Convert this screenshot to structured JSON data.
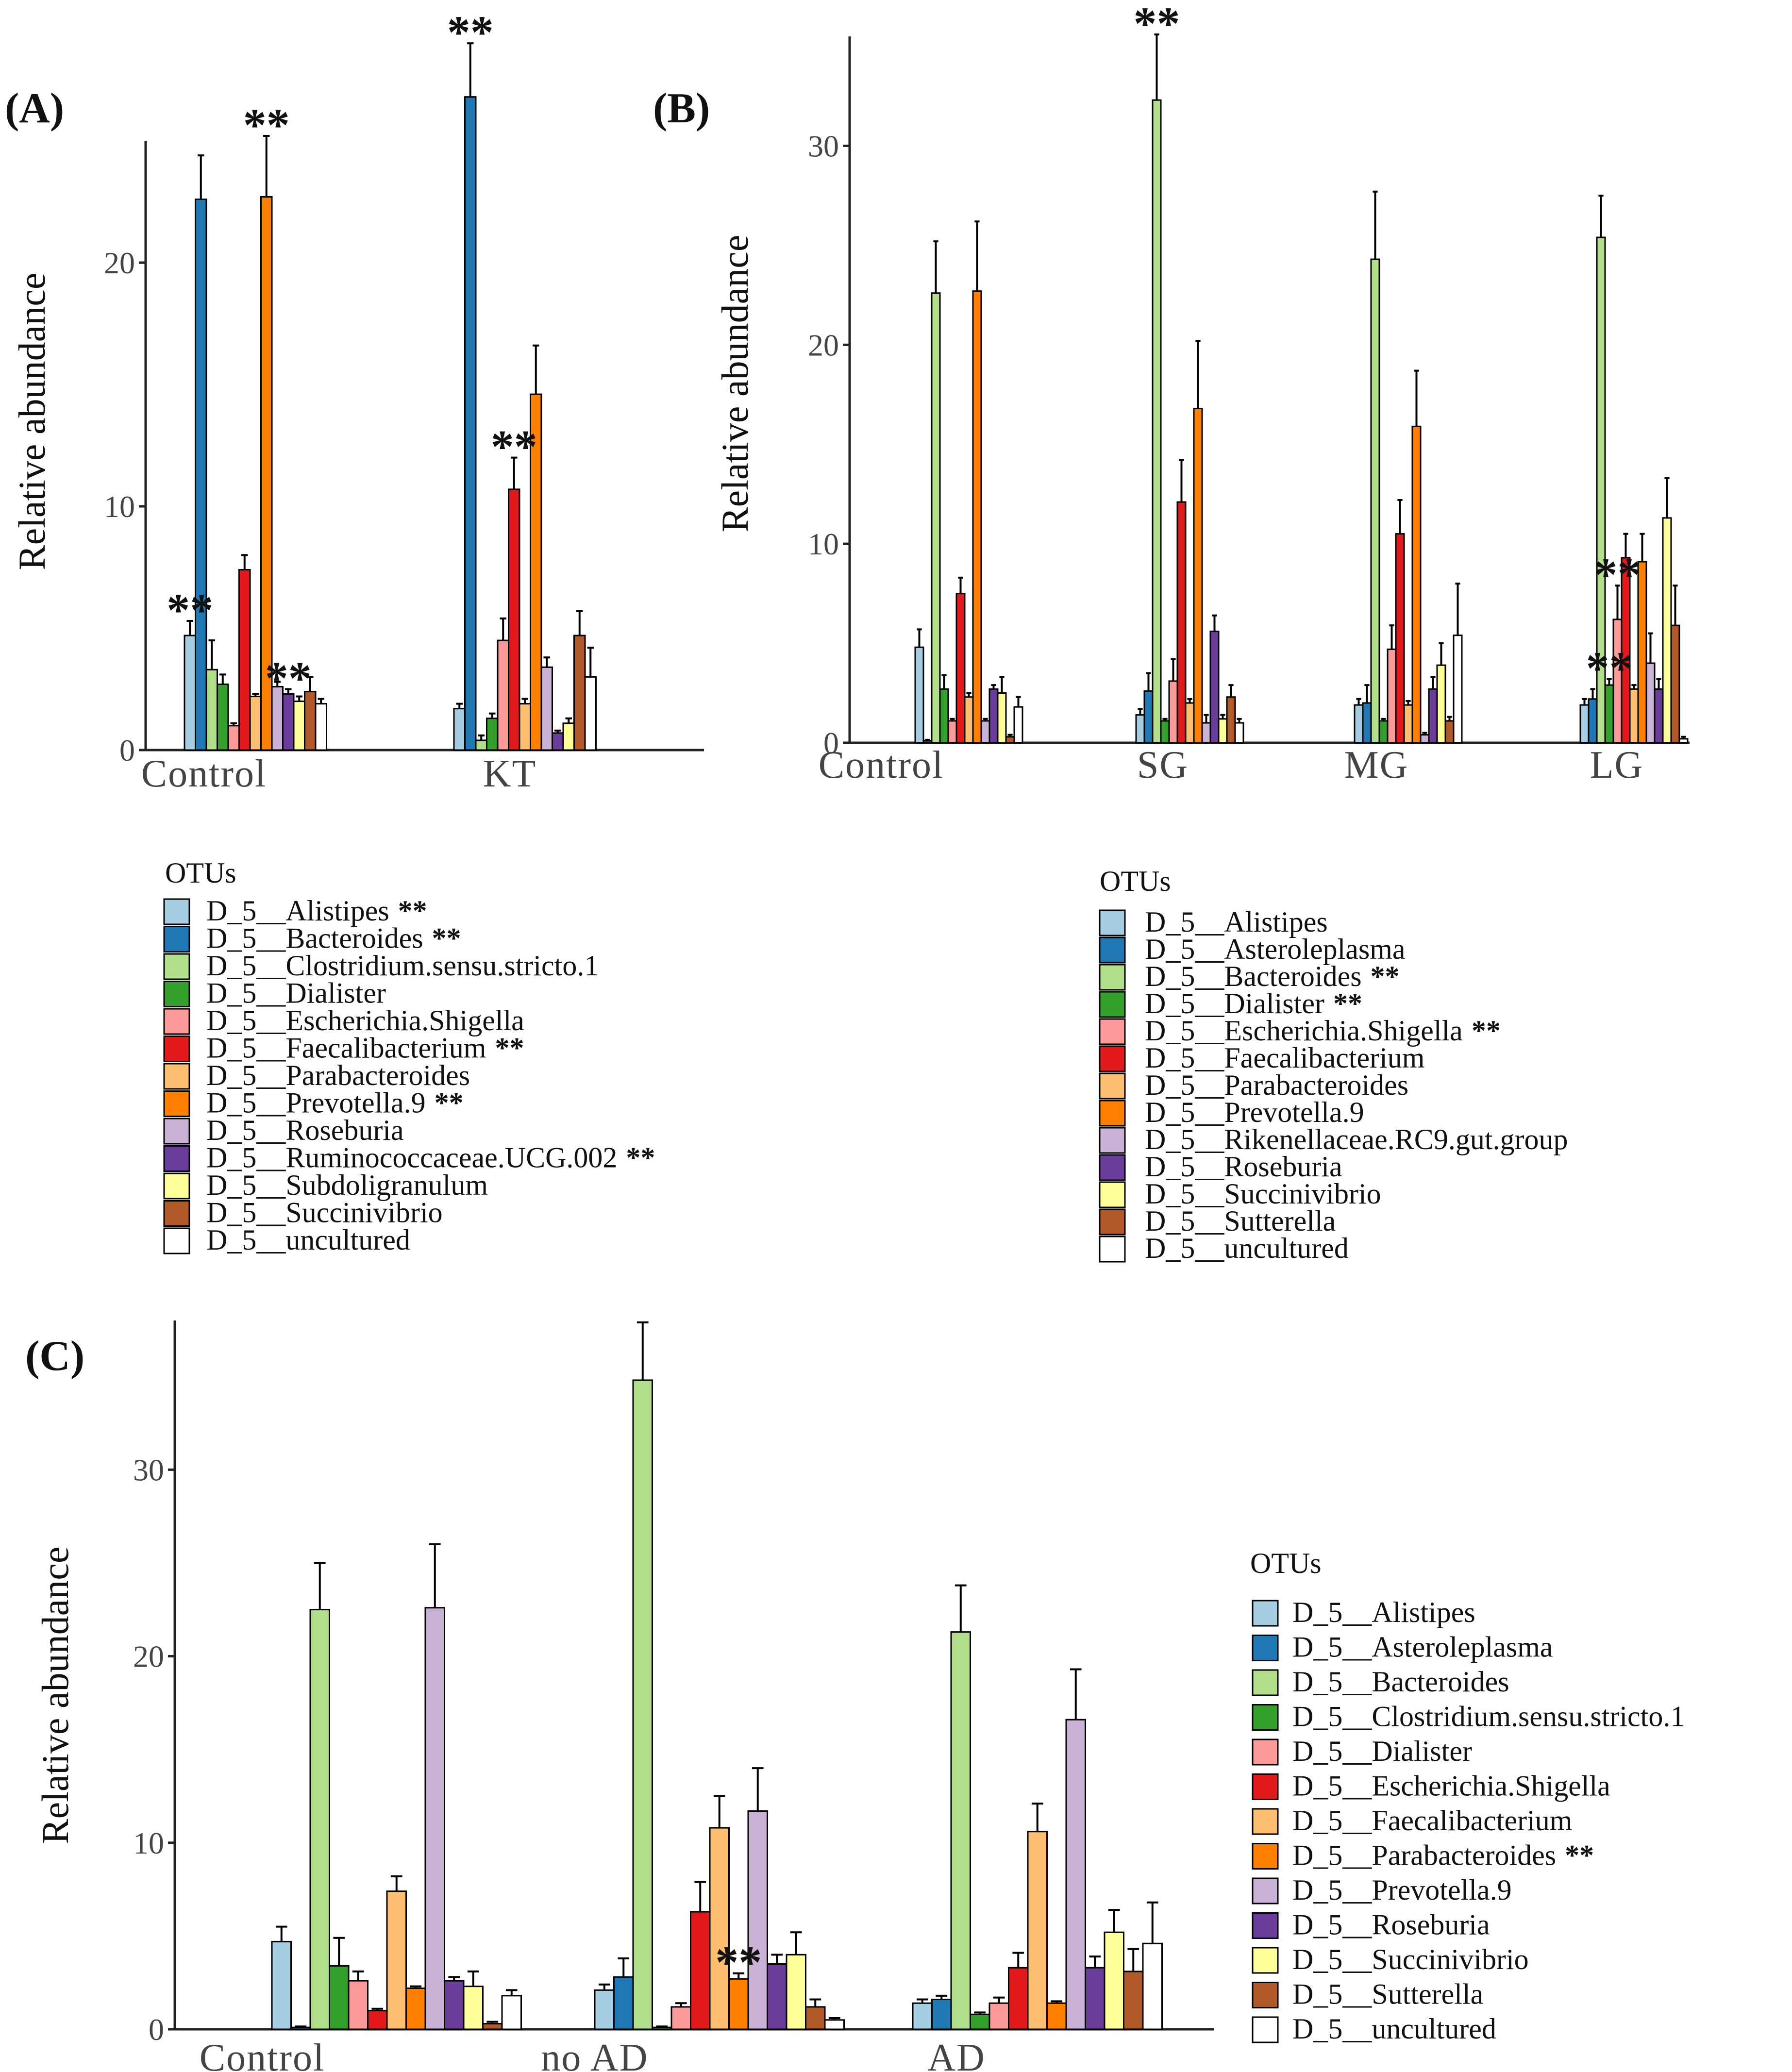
{
  "figure": {
    "legend_title": "OTUs"
  },
  "colors": {
    "light_blue": "#a6cee3",
    "dark_blue": "#1f78b4",
    "light_green": "#b2df8a",
    "dark_green": "#33a02c",
    "pink": "#fb9a99",
    "red": "#e31a1c",
    "light_orange": "#fdbf6f",
    "orange": "#ff7f00",
    "lavender": "#cab2d6",
    "purple": "#6a3d9a",
    "yellow": "#ffff99",
    "brown": "#b15928",
    "white": "#ffffff"
  },
  "chart_data": [
    {
      "panel": "(A)",
      "type": "bar",
      "ylabel": "Relative abundance",
      "ylim": [
        0,
        25
      ],
      "yticks": [
        0,
        10,
        20
      ],
      "categories": [
        "Control",
        "KT"
      ],
      "series": [
        {
          "name": "D_5__Alistipes",
          "color": "#a6cee3",
          "values": [
            4.7,
            1.7
          ],
          "errors": [
            0.6,
            0.2
          ],
          "legend_star": "**"
        },
        {
          "name": "D_5__Bacteroides",
          "color": "#1f78b4",
          "values": [
            22.6,
            26.8
          ],
          "errors": [
            1.8,
            2.2
          ],
          "legend_star": "**"
        },
        {
          "name": "D_5__Clostridium.sensu.stricto.1",
          "color": "#b2df8a",
          "values": [
            3.3,
            0.4
          ],
          "errors": [
            1.2,
            0.2
          ],
          "legend_star": ""
        },
        {
          "name": "D_5__Dialister",
          "color": "#33a02c",
          "values": [
            2.7,
            1.3
          ],
          "errors": [
            0.4,
            0.2
          ],
          "legend_star": ""
        },
        {
          "name": "D_5__Escherichia.Shigella",
          "color": "#fb9a99",
          "values": [
            1.0,
            4.5
          ],
          "errors": [
            0.1,
            0.9
          ],
          "legend_star": ""
        },
        {
          "name": "D_5__Faecalibacterium",
          "color": "#e31a1c",
          "values": [
            7.4,
            10.7
          ],
          "errors": [
            0.6,
            1.3
          ],
          "legend_star": "**"
        },
        {
          "name": "D_5__Parabacteroides",
          "color": "#fdbf6f",
          "values": [
            2.2,
            1.9
          ],
          "errors": [
            0.1,
            0.2
          ],
          "legend_star": ""
        },
        {
          "name": "D_5__Prevotella.9",
          "color": "#ff7f00",
          "values": [
            22.7,
            14.6
          ],
          "errors": [
            2.5,
            2.0
          ],
          "legend_star": "**"
        },
        {
          "name": "D_5__Roseburia",
          "color": "#cab2d6",
          "values": [
            2.6,
            3.4
          ],
          "errors": [
            0.2,
            0.4
          ],
          "legend_star": ""
        },
        {
          "name": "D_5__Ruminococcaceae.UCG.002",
          "color": "#6a3d9a",
          "values": [
            2.3,
            0.7
          ],
          "errors": [
            0.2,
            0.1
          ],
          "legend_star": "**"
        },
        {
          "name": "D_5__Subdoligranulum",
          "color": "#ffff99",
          "values": [
            2.0,
            1.1
          ],
          "errors": [
            0.2,
            0.2
          ],
          "legend_star": ""
        },
        {
          "name": "D_5__Succinivibrio",
          "color": "#b15928",
          "values": [
            2.4,
            4.7
          ],
          "errors": [
            0.6,
            1.0
          ],
          "legend_star": ""
        },
        {
          "name": "D_5__uncultured",
          "color": "#ffffff",
          "values": [
            1.9,
            3.0
          ],
          "errors": [
            0.2,
            1.2
          ],
          "legend_star": ""
        }
      ],
      "annotations": [
        {
          "text": "**",
          "group": 0,
          "series": 0
        },
        {
          "text": "**",
          "group": 0,
          "series": 7
        },
        {
          "text": "**",
          "group": 0,
          "series": 9
        },
        {
          "text": "**",
          "group": 1,
          "series": 1
        },
        {
          "text": "**",
          "group": 1,
          "series": 5
        }
      ]
    },
    {
      "panel": "(B)",
      "type": "bar",
      "ylabel": "Relative abundance",
      "ylim": [
        0,
        35.5
      ],
      "yticks": [
        0,
        10,
        20,
        30
      ],
      "categories": [
        "Control",
        "SG",
        "MG",
        "LG"
      ],
      "series": [
        {
          "name": "D_5__Alistipes",
          "color": "#a6cee3",
          "values": [
            4.8,
            1.4,
            1.9,
            1.9
          ],
          "errors": [
            0.9,
            0.3,
            0.3,
            0.3
          ],
          "legend_star": ""
        },
        {
          "name": "D_5__Asteroleplasma",
          "color": "#1f78b4",
          "values": [
            0.1,
            2.6,
            2.0,
            2.2
          ],
          "errors": [
            0.05,
            0.9,
            0.9,
            0.5
          ],
          "legend_star": ""
        },
        {
          "name": "D_5__Bacteroides",
          "color": "#b2df8a",
          "values": [
            22.6,
            32.3,
            24.3,
            25.4
          ],
          "errors": [
            2.6,
            3.3,
            3.4,
            2.1
          ],
          "legend_star": "**"
        },
        {
          "name": "D_5__Dialister",
          "color": "#33a02c",
          "values": [
            2.7,
            1.1,
            1.1,
            2.9
          ],
          "errors": [
            0.7,
            0.1,
            0.1,
            0.3
          ],
          "legend_star": "**"
        },
        {
          "name": "D_5__Escherichia.Shigella",
          "color": "#fb9a99",
          "values": [
            1.1,
            3.1,
            4.7,
            6.2
          ],
          "errors": [
            0.1,
            1.1,
            1.2,
            1.7
          ],
          "legend_star": "**"
        },
        {
          "name": "D_5__Faecalibacterium",
          "color": "#e31a1c",
          "values": [
            7.5,
            12.1,
            10.5,
            9.3
          ],
          "errors": [
            0.8,
            2.1,
            1.7,
            1.2
          ],
          "legend_star": ""
        },
        {
          "name": "D_5__Parabacteroides",
          "color": "#fdbf6f",
          "values": [
            2.3,
            2.0,
            1.9,
            2.7
          ],
          "errors": [
            0.2,
            0.2,
            0.2,
            0.2
          ],
          "legend_star": ""
        },
        {
          "name": "D_5__Prevotella.9",
          "color": "#ff7f00",
          "values": [
            22.7,
            16.8,
            15.9,
            9.1
          ],
          "errors": [
            3.5,
            3.4,
            2.8,
            1.4
          ],
          "legend_star": ""
        },
        {
          "name": "D_5__Rikenellaceae.RC9.gut.group",
          "color": "#cab2d6",
          "values": [
            1.1,
            1.0,
            0.4,
            4.0
          ],
          "errors": [
            0.1,
            0.4,
            0.1,
            1.5
          ],
          "legend_star": ""
        },
        {
          "name": "D_5__Roseburia",
          "color": "#6a3d9a",
          "values": [
            2.7,
            5.6,
            2.7,
            2.7
          ],
          "errors": [
            0.2,
            0.8,
            0.6,
            0.5
          ],
          "legend_star": ""
        },
        {
          "name": "D_5__Succinivibrio",
          "color": "#ffff99",
          "values": [
            2.5,
            1.2,
            3.9,
            11.3
          ],
          "errors": [
            0.8,
            0.2,
            1.1,
            2.0
          ],
          "legend_star": ""
        },
        {
          "name": "D_5__Sutterella",
          "color": "#b15928",
          "values": [
            0.3,
            2.3,
            1.1,
            5.9
          ],
          "errors": [
            0.1,
            0.6,
            0.2,
            2.0
          ],
          "legend_star": ""
        },
        {
          "name": "D_5__uncultured",
          "color": "#ffffff",
          "values": [
            1.8,
            1.0,
            5.4,
            0.2
          ],
          "errors": [
            0.5,
            0.2,
            2.6,
            0.1
          ],
          "legend_star": ""
        }
      ],
      "annotations": [
        {
          "text": "**",
          "group": 1,
          "series": 2
        },
        {
          "text": "**",
          "group": 3,
          "series": 3
        },
        {
          "text": "**",
          "group": 3,
          "series": 4
        }
      ]
    },
    {
      "panel": "(C)",
      "type": "bar",
      "ylabel": "Relative abundance",
      "ylim": [
        0,
        38
      ],
      "yticks": [
        0,
        10,
        20,
        30
      ],
      "categories": [
        "Control",
        "no AD",
        "AD"
      ],
      "series": [
        {
          "name": "D_5__Alistipes",
          "color": "#a6cee3",
          "values": [
            4.7,
            2.1,
            1.4
          ],
          "errors": [
            0.8,
            0.3,
            0.2
          ],
          "legend_star": ""
        },
        {
          "name": "D_5__Asteroleplasma",
          "color": "#1f78b4",
          "values": [
            0.1,
            2.8,
            1.6
          ],
          "errors": [
            0.05,
            1.0,
            0.2
          ],
          "legend_star": ""
        },
        {
          "name": "D_5__Bacteroides",
          "color": "#b2df8a",
          "values": [
            22.5,
            34.8,
            21.3
          ],
          "errors": [
            2.5,
            3.1,
            2.5
          ],
          "legend_star": ""
        },
        {
          "name": "D_5__Clostridium.sensu.stricto.1",
          "color": "#33a02c",
          "values": [
            3.4,
            0.1,
            0.8
          ],
          "errors": [
            1.5,
            0.05,
            0.1
          ],
          "legend_star": ""
        },
        {
          "name": "D_5__Dialister",
          "color": "#fb9a99",
          "values": [
            2.6,
            1.2,
            1.4
          ],
          "errors": [
            0.5,
            0.2,
            0.3
          ],
          "legend_star": ""
        },
        {
          "name": "D_5__Escherichia.Shigella",
          "color": "#e31a1c",
          "values": [
            1.0,
            6.3,
            3.3
          ],
          "errors": [
            0.1,
            1.6,
            0.8
          ],
          "legend_star": ""
        },
        {
          "name": "D_5__Faecalibacterium",
          "color": "#fdbf6f",
          "values": [
            7.4,
            10.8,
            10.6
          ],
          "errors": [
            0.8,
            1.7,
            1.5
          ],
          "legend_star": ""
        },
        {
          "name": "D_5__Parabacteroides",
          "color": "#ff7f00",
          "values": [
            2.2,
            2.7,
            1.4
          ],
          "errors": [
            0.1,
            0.3,
            0.1
          ],
          "legend_star": "**"
        },
        {
          "name": "D_5__Prevotella.9",
          "color": "#cab2d6",
          "values": [
            22.6,
            11.7,
            16.6
          ],
          "errors": [
            3.4,
            2.3,
            2.7
          ],
          "legend_star": ""
        },
        {
          "name": "D_5__Roseburia",
          "color": "#6a3d9a",
          "values": [
            2.6,
            3.5,
            3.3
          ],
          "errors": [
            0.2,
            0.5,
            0.6
          ],
          "legend_star": ""
        },
        {
          "name": "D_5__Succinivibrio",
          "color": "#ffff99",
          "values": [
            2.3,
            4.0,
            5.2
          ],
          "errors": [
            0.8,
            1.2,
            1.2
          ],
          "legend_star": ""
        },
        {
          "name": "D_5__Sutterella",
          "color": "#b15928",
          "values": [
            0.3,
            1.2,
            3.1
          ],
          "errors": [
            0.1,
            0.4,
            1.2
          ],
          "legend_star": ""
        },
        {
          "name": "D_5__uncultured",
          "color": "#ffffff",
          "values": [
            1.8,
            0.5,
            4.6
          ],
          "errors": [
            0.3,
            0.1,
            2.2
          ],
          "legend_star": ""
        }
      ],
      "annotations": [
        {
          "text": "**",
          "group": 1,
          "series": 7
        }
      ]
    }
  ]
}
